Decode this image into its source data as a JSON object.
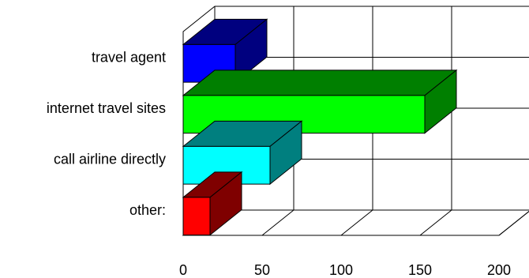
{
  "chart_data": {
    "type": "bar",
    "orientation": "horizontal",
    "three_d": true,
    "categories": [
      "travel agent",
      "internet travel sites",
      "call airline directly",
      "other:"
    ],
    "values": [
      33,
      153,
      55,
      17
    ],
    "colors": [
      "#0000ff",
      "#00ff00",
      "#00ffff",
      "#ff0000"
    ],
    "side_colors": [
      "#00007f",
      "#007f00",
      "#007f7f",
      "#7f0000"
    ],
    "xticks": [
      0,
      50,
      100,
      150,
      200
    ],
    "xlim": [
      0,
      200
    ],
    "grid": true,
    "legend": "none",
    "title": "",
    "xlabel": "",
    "ylabel": ""
  }
}
